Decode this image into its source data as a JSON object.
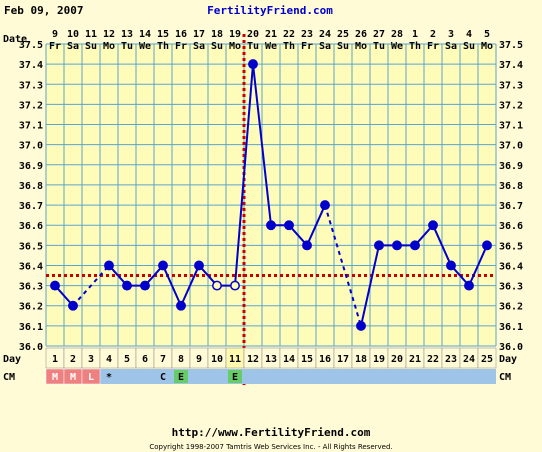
{
  "header": {
    "date": "Feb 09, 2007",
    "site": "FertilityFriend.com"
  },
  "footer": {
    "url": "http://www.FertilityFriend.com",
    "copyright": "Copyright 1998-2007 Tamtris Web Services Inc. - All Rights Reserved."
  },
  "colors": {
    "background": "#fffbd6",
    "plot_background": "#fffbb8",
    "grid": "#5aa6cf",
    "line": "#0000cc",
    "coverline": "#cc0000",
    "ovulation_line": "#cc0000",
    "menses_cell": "#ee8080",
    "cm_row": "#9ec5e8",
    "egg_white_cell": "#66cc66"
  },
  "chart_data": {
    "type": "line",
    "row_labels": {
      "date": "Date",
      "day": "Day",
      "cm": "CM"
    },
    "dates": [
      "9",
      "10",
      "11",
      "12",
      "13",
      "14",
      "15",
      "16",
      "17",
      "18",
      "19",
      "20",
      "21",
      "22",
      "23",
      "24",
      "25",
      "26",
      "27",
      "28",
      "1",
      "2",
      "3",
      "4",
      "5"
    ],
    "weekdays": [
      "Fr",
      "Sa",
      "Su",
      "Mo",
      "Tu",
      "We",
      "Th",
      "Fr",
      "Sa",
      "Su",
      "Mo",
      "Tu",
      "We",
      "Th",
      "Fr",
      "Sa",
      "Su",
      "Mo",
      "Tu",
      "We",
      "Th",
      "Fr",
      "Sa",
      "Su",
      "Mo"
    ],
    "cycle_days": [
      1,
      2,
      3,
      4,
      5,
      6,
      7,
      8,
      9,
      10,
      11,
      12,
      13,
      14,
      15,
      16,
      17,
      18,
      19,
      20,
      21,
      22,
      23,
      24,
      25
    ],
    "temperatures": [
      36.3,
      36.2,
      null,
      36.4,
      36.3,
      36.3,
      36.4,
      36.2,
      36.4,
      36.3,
      36.3,
      37.4,
      36.6,
      36.6,
      36.5,
      36.7,
      null,
      36.1,
      36.5,
      36.5,
      36.5,
      36.6,
      36.4,
      36.3,
      36.5
    ],
    "open_points": [
      2,
      9,
      10
    ],
    "dashed_segments": [
      [
        2,
        3
      ],
      [
        3,
        4
      ],
      [
        16,
        17
      ],
      [
        17,
        18
      ]
    ],
    "y_ticks": [
      "37.5",
      "37.4",
      "37.3",
      "37.2",
      "37.1",
      "37.0",
      "36.9",
      "36.8",
      "36.7",
      "36.6",
      "36.5",
      "36.4",
      "36.3",
      "36.2",
      "36.1",
      "36.0"
    ],
    "ylim": [
      36.0,
      37.5
    ],
    "coverline": 36.35,
    "ovulation_day": 11,
    "cm": [
      "M",
      "M",
      "L",
      "*",
      "",
      "",
      "C",
      "E",
      "",
      "",
      "E",
      "",
      "",
      "",
      "",
      "",
      "",
      "",
      "",
      "",
      "",
      "",
      "",
      "",
      ""
    ],
    "grid": true
  }
}
